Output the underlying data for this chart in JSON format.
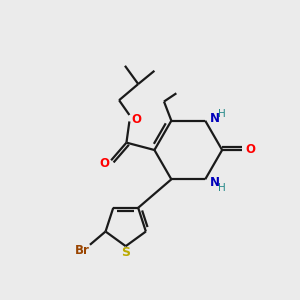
{
  "background_color": "#ebebeb",
  "bond_color": "#1a1a1a",
  "colors": {
    "O": "#ff0000",
    "N": "#0000bb",
    "S": "#bbaa00",
    "Br": "#994400",
    "C": "#1a1a1a",
    "H": "#228888"
  },
  "figsize": [
    3.0,
    3.0
  ],
  "dpi": 100
}
